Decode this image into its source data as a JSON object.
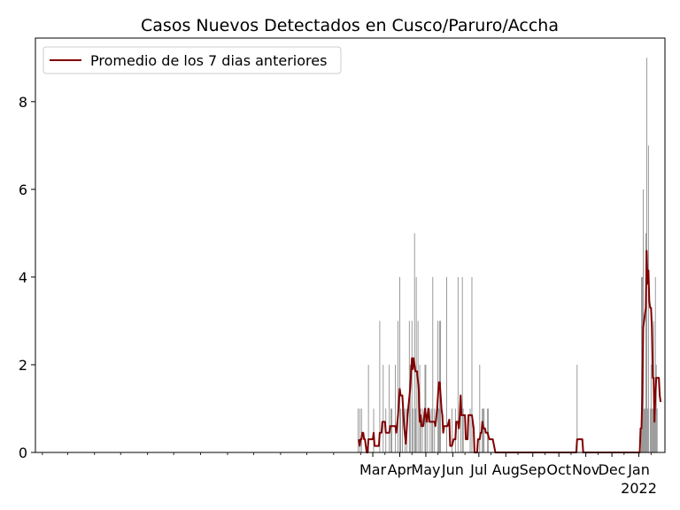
{
  "chart_data": {
    "type": "bar",
    "title": "Casos Nuevos Detectados en Cusco/Paruro/Accha",
    "xlabel": "",
    "ylabel": "",
    "ylim": [
      0,
      9.45
    ],
    "xlim": [
      "2020-02-07",
      "2022-01-31"
    ],
    "y_ticks": [
      0,
      2,
      4,
      6,
      8
    ],
    "x_ticks": [
      {
        "date": "2021-03-01",
        "label": "Mar"
      },
      {
        "date": "2021-04-01",
        "label": "Apr"
      },
      {
        "date": "2021-05-01",
        "label": "May"
      },
      {
        "date": "2021-06-01",
        "label": "Jun"
      },
      {
        "date": "2021-07-01",
        "label": "Jul"
      },
      {
        "date": "2021-08-01",
        "label": "Aug"
      },
      {
        "date": "2021-09-01",
        "label": "Sep"
      },
      {
        "date": "2021-10-01",
        "label": "Oct"
      },
      {
        "date": "2021-11-01",
        "label": "Nov"
      },
      {
        "date": "2021-12-01",
        "label": "Dec"
      },
      {
        "date": "2022-01-01",
        "label": "Jan"
      }
    ],
    "year_label": {
      "date": "2022-01-01",
      "label": "2022"
    },
    "legend": {
      "placement": "upper-left",
      "entries": [
        "Promedio de los 7 dias anteriores"
      ]
    },
    "grid": false,
    "colors": {
      "bars": "#808080",
      "line": "#800000",
      "frame": "#000000"
    },
    "series": [
      {
        "kind": "bar",
        "points": [
          [
            "2021-02-12",
            1
          ],
          [
            "2021-02-14",
            1
          ],
          [
            "2021-02-16",
            1
          ],
          [
            "2021-02-24",
            2
          ],
          [
            "2021-03-02",
            1
          ],
          [
            "2021-03-09",
            3
          ],
          [
            "2021-03-13",
            2
          ],
          [
            "2021-03-16",
            1
          ],
          [
            "2021-03-20",
            2
          ],
          [
            "2021-03-22",
            1
          ],
          [
            "2021-03-23",
            1
          ],
          [
            "2021-03-27",
            2
          ],
          [
            "2021-03-30",
            3
          ],
          [
            "2021-04-01",
            4
          ],
          [
            "2021-04-02",
            1
          ],
          [
            "2021-04-04",
            1
          ],
          [
            "2021-04-07",
            1
          ],
          [
            "2021-04-09",
            1
          ],
          [
            "2021-04-12",
            3
          ],
          [
            "2021-04-13",
            2
          ],
          [
            "2021-04-15",
            3
          ],
          [
            "2021-04-16",
            1
          ],
          [
            "2021-04-18",
            5
          ],
          [
            "2021-04-19",
            1
          ],
          [
            "2021-04-20",
            4
          ],
          [
            "2021-04-22",
            3
          ],
          [
            "2021-04-24",
            2
          ],
          [
            "2021-04-25",
            1
          ],
          [
            "2021-04-27",
            1
          ],
          [
            "2021-04-30",
            2
          ],
          [
            "2021-05-01",
            2
          ],
          [
            "2021-05-03",
            1
          ],
          [
            "2021-05-06",
            1
          ],
          [
            "2021-05-08",
            1
          ],
          [
            "2021-05-09",
            4
          ],
          [
            "2021-05-11",
            1
          ],
          [
            "2021-05-15",
            3
          ],
          [
            "2021-05-16",
            1
          ],
          [
            "2021-05-17",
            3
          ],
          [
            "2021-05-18",
            3
          ],
          [
            "2021-05-25",
            4
          ],
          [
            "2021-05-31",
            1
          ],
          [
            "2021-06-04",
            1
          ],
          [
            "2021-06-07",
            4
          ],
          [
            "2021-06-10",
            1
          ],
          [
            "2021-06-12",
            4
          ],
          [
            "2021-06-13",
            1
          ],
          [
            "2021-06-21",
            1
          ],
          [
            "2021-06-23",
            4
          ],
          [
            "2021-07-02",
            2
          ],
          [
            "2021-07-05",
            1
          ],
          [
            "2021-07-06",
            1
          ],
          [
            "2021-07-07",
            1
          ],
          [
            "2021-07-11",
            1
          ],
          [
            "2021-07-12",
            1
          ],
          [
            "2021-10-22",
            2
          ],
          [
            "2022-01-04",
            4
          ],
          [
            "2022-01-05",
            4
          ],
          [
            "2022-01-06",
            6
          ],
          [
            "2022-01-07",
            1
          ],
          [
            "2022-01-08",
            1
          ],
          [
            "2022-01-09",
            5
          ],
          [
            "2022-01-10",
            9
          ],
          [
            "2022-01-11",
            1
          ],
          [
            "2022-01-12",
            7
          ],
          [
            "2022-01-14",
            1
          ],
          [
            "2022-01-15",
            2
          ],
          [
            "2022-01-16",
            1
          ],
          [
            "2022-01-17",
            1
          ],
          [
            "2022-01-18",
            3
          ],
          [
            "2022-01-19",
            1
          ],
          [
            "2022-01-20",
            4
          ],
          [
            "2022-01-21",
            2
          ],
          [
            "2022-01-22",
            1
          ]
        ]
      },
      {
        "kind": "line",
        "name": "Promedio de los 7 dias anteriores",
        "points": [
          [
            "2021-02-13",
            0.3
          ],
          [
            "2021-02-14",
            0.15
          ],
          [
            "2021-02-15",
            0.3
          ],
          [
            "2021-02-16",
            0.3
          ],
          [
            "2021-02-17",
            0.45
          ],
          [
            "2021-02-18",
            0.45
          ],
          [
            "2021-02-19",
            0.3
          ],
          [
            "2021-02-20",
            0.3
          ],
          [
            "2021-02-21",
            0.15
          ],
          [
            "2021-02-22",
            0.0
          ],
          [
            "2021-02-23",
            0.0
          ],
          [
            "2021-02-24",
            0.3
          ],
          [
            "2021-03-01",
            0.3
          ],
          [
            "2021-03-02",
            0.45
          ],
          [
            "2021-03-03",
            0.15
          ],
          [
            "2021-03-08",
            0.15
          ],
          [
            "2021-03-09",
            0.45
          ],
          [
            "2021-03-11",
            0.45
          ],
          [
            "2021-03-12",
            0.7
          ],
          [
            "2021-03-15",
            0.7
          ],
          [
            "2021-03-16",
            0.45
          ],
          [
            "2021-03-20",
            0.45
          ],
          [
            "2021-03-21",
            0.6
          ],
          [
            "2021-03-27",
            0.6
          ],
          [
            "2021-03-28",
            0.45
          ],
          [
            "2021-03-30",
            0.85
          ],
          [
            "2021-04-01",
            1.45
          ],
          [
            "2021-04-02",
            1.3
          ],
          [
            "2021-04-04",
            1.3
          ],
          [
            "2021-04-06",
            0.6
          ],
          [
            "2021-04-08",
            0.2
          ],
          [
            "2021-04-10",
            0.85
          ],
          [
            "2021-04-13",
            1.45
          ],
          [
            "2021-04-15",
            2.15
          ],
          [
            "2021-04-16",
            1.9
          ],
          [
            "2021-04-17",
            2.15
          ],
          [
            "2021-04-18",
            2.0
          ],
          [
            "2021-04-19",
            1.85
          ],
          [
            "2021-04-21",
            1.85
          ],
          [
            "2021-04-23",
            1.4
          ],
          [
            "2021-04-24",
            0.7
          ],
          [
            "2021-04-25",
            0.85
          ],
          [
            "2021-04-26",
            0.6
          ],
          [
            "2021-04-28",
            0.6
          ],
          [
            "2021-04-30",
            1.0
          ],
          [
            "2021-05-02",
            0.7
          ],
          [
            "2021-05-04",
            1.0
          ],
          [
            "2021-05-05",
            0.7
          ],
          [
            "2021-05-11",
            0.7
          ],
          [
            "2021-05-12",
            0.6
          ],
          [
            "2021-05-14",
            1.0
          ],
          [
            "2021-05-16",
            1.6
          ],
          [
            "2021-05-17",
            1.6
          ],
          [
            "2021-05-19",
            1.0
          ],
          [
            "2021-05-20",
            0.85
          ],
          [
            "2021-05-21",
            0.45
          ],
          [
            "2021-05-22",
            0.6
          ],
          [
            "2021-05-26",
            0.6
          ],
          [
            "2021-05-28",
            0.75
          ],
          [
            "2021-05-29",
            0.15
          ],
          [
            "2021-05-31",
            0.15
          ],
          [
            "2021-06-02",
            0.3
          ],
          [
            "2021-06-04",
            0.3
          ],
          [
            "2021-06-05",
            0.7
          ],
          [
            "2021-06-07",
            0.7
          ],
          [
            "2021-06-08",
            0.55
          ],
          [
            "2021-06-09",
            0.85
          ],
          [
            "2021-06-10",
            1.3
          ],
          [
            "2021-06-11",
            0.85
          ],
          [
            "2021-06-15",
            0.85
          ],
          [
            "2021-06-16",
            0.3
          ],
          [
            "2021-06-18",
            0.3
          ],
          [
            "2021-06-19",
            0.85
          ],
          [
            "2021-06-23",
            0.85
          ],
          [
            "2021-06-25",
            0.55
          ],
          [
            "2021-06-26",
            0.0
          ],
          [
            "2021-06-29",
            0.0
          ],
          [
            "2021-06-30",
            0.3
          ],
          [
            "2021-07-02",
            0.3
          ],
          [
            "2021-07-03",
            0.45
          ],
          [
            "2021-07-04",
            0.45
          ],
          [
            "2021-07-05",
            0.7
          ],
          [
            "2021-07-06",
            0.55
          ],
          [
            "2021-07-08",
            0.55
          ],
          [
            "2021-07-09",
            0.45
          ],
          [
            "2021-07-11",
            0.45
          ],
          [
            "2021-07-13",
            0.3
          ],
          [
            "2021-07-17",
            0.3
          ],
          [
            "2021-07-20",
            0.0
          ],
          [
            "2021-10-21",
            0.0
          ],
          [
            "2021-10-22",
            0.3
          ],
          [
            "2021-10-28",
            0.3
          ],
          [
            "2021-10-29",
            0.0
          ],
          [
            "2022-01-02",
            0.0
          ],
          [
            "2022-01-03",
            0.55
          ],
          [
            "2022-01-04",
            0.55
          ],
          [
            "2022-01-05",
            1.3
          ],
          [
            "2022-01-06",
            2.85
          ],
          [
            "2022-01-08",
            3.15
          ],
          [
            "2022-01-09",
            3.3
          ],
          [
            "2022-01-10",
            4.6
          ],
          [
            "2022-01-11",
            3.85
          ],
          [
            "2022-01-12",
            4.15
          ],
          [
            "2022-01-13",
            3.45
          ],
          [
            "2022-01-14",
            3.3
          ],
          [
            "2022-01-15",
            3.3
          ],
          [
            "2022-01-16",
            2.85
          ],
          [
            "2022-01-17",
            1.7
          ],
          [
            "2022-01-18",
            1.7
          ],
          [
            "2022-01-19",
            0.7
          ],
          [
            "2022-01-20",
            1.3
          ],
          [
            "2022-01-21",
            1.7
          ],
          [
            "2022-01-24",
            1.7
          ],
          [
            "2022-01-25",
            1.3
          ],
          [
            "2022-01-26",
            1.15
          ]
        ]
      }
    ]
  }
}
